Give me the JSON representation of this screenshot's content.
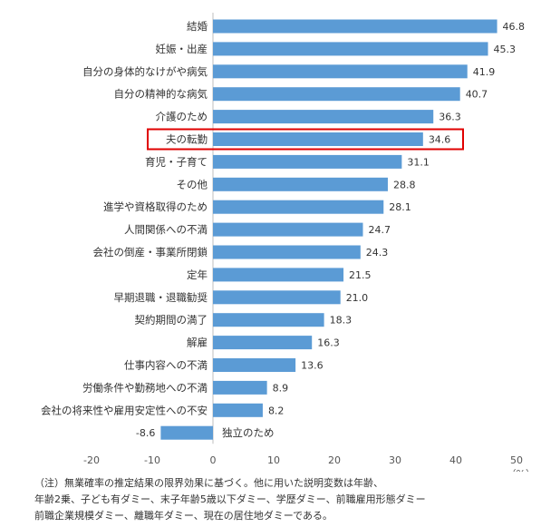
{
  "chart_data": {
    "type": "bar",
    "orientation": "horizontal",
    "categories": [
      "結婚",
      "妊娠・出産",
      "自分の身体的なけがや病気",
      "自分の精神的な病気",
      "介護のため",
      "夫の転勤",
      "育児・子育て",
      "その他",
      "進学や資格取得のため",
      "人間関係への不満",
      "会社の倒産・事業所閉鎖",
      "定年",
      "早期退職・退職勧奨",
      "契約期間の満了",
      "解雇",
      "仕事内容への不満",
      "労働条件や勤務地への不満",
      "会社の将来性や雇用安定性への不安",
      "独立のため"
    ],
    "values": [
      46.8,
      45.3,
      41.9,
      40.7,
      36.3,
      34.6,
      31.1,
      28.8,
      28.1,
      24.7,
      24.3,
      21.5,
      21.0,
      18.3,
      16.3,
      13.6,
      8.9,
      8.2,
      -8.6
    ],
    "value_labels": [
      "46.8",
      "45.3",
      "41.9",
      "40.7",
      "36.3",
      "34.6",
      "31.1",
      "28.8",
      "28.1",
      "24.7",
      "24.3",
      "21.5",
      "21.0",
      "18.3",
      "16.3",
      "13.6",
      "8.9",
      "8.2",
      "-8.6"
    ],
    "highlighted_category": "夫の転勤",
    "xlim": [
      -20,
      50
    ],
    "x_ticks": [
      "-20",
      "-10",
      "0",
      "10",
      "20",
      "30",
      "40",
      "50"
    ],
    "unit_label": "（%）",
    "bar_color": "#5b9bd5",
    "highlight_color": "#e00000",
    "grid": false
  },
  "footnote": [
    "（注）無業確率の推定結果の限界効果に基づく。他に用いた説明変数は年齢、",
    "年齢2乗、子ども有ダミー、末子年齢5歳以下ダミー、学歴ダミー、前職雇用形態ダミー",
    "前職企業規模ダミー、離職年ダミー、現在の居住地ダミーである。"
  ]
}
